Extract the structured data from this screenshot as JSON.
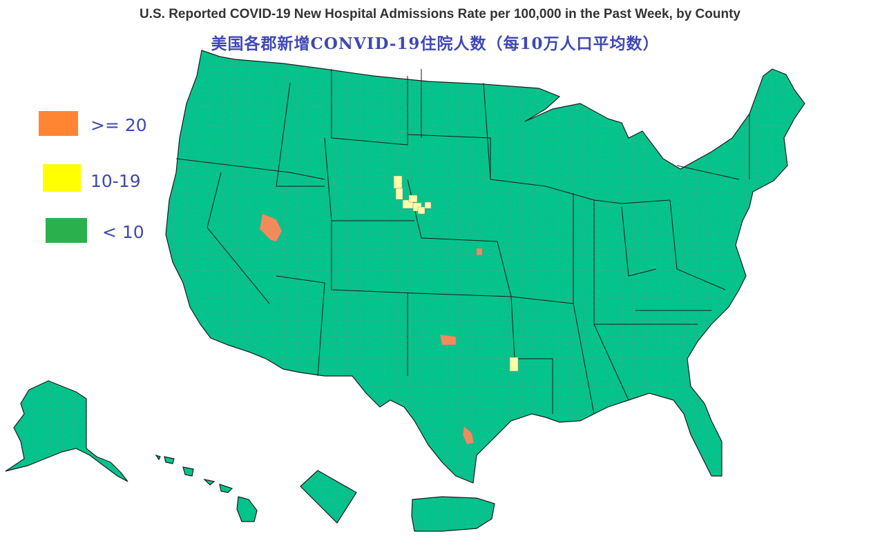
{
  "title": "U.S. Reported COVID-19 New Hospital Admissions Rate per 100,000 in the Past Week, by County",
  "subtitle": "美国各郡新增CONVID-19住院人数（每10万人口平均数）",
  "legend": [
    {
      "label": ">= 20",
      "color": "#ff8533"
    },
    {
      "label": "10-19",
      "color": "#ffff00"
    },
    {
      "label": "< 10",
      "color": "#2ab14d"
    }
  ],
  "colors": {
    "base": "#00c48c",
    "high": "#f28b5c",
    "mid": "#ffffa8",
    "state_border": "#1a1a1a",
    "county_border": "#8a8a8a"
  }
}
